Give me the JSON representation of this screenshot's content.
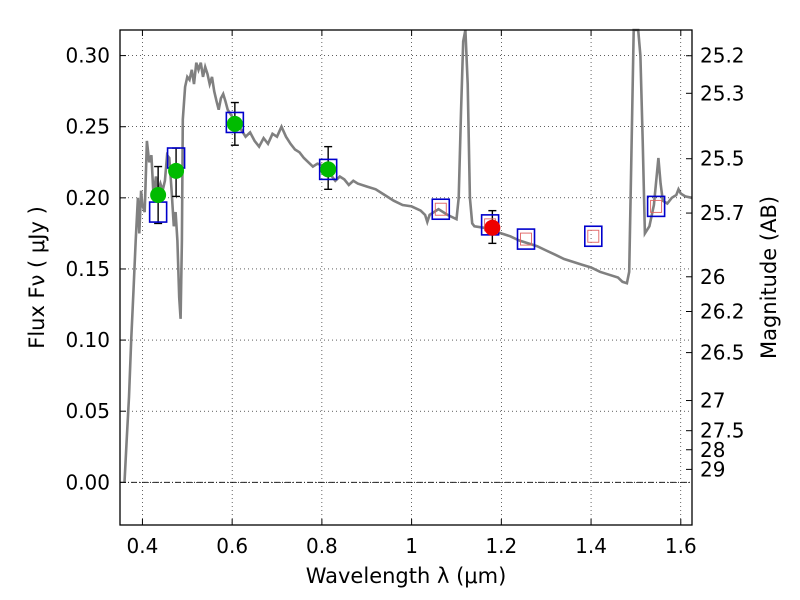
{
  "chart_data": {
    "type": "scatter",
    "xlabel": "Wavelength  λ (μm)",
    "ylabel": "Flux  Fν  ( μJy )",
    "y2label": "Magnitude (AB)",
    "xlim": [
      0.35,
      1.625
    ],
    "ylim": [
      -0.03,
      0.318
    ],
    "x_ticks": [
      0.4,
      0.6,
      0.8,
      1.0,
      1.2,
      1.4,
      1.6
    ],
    "x_tick_labels": [
      "0.4",
      "0.6",
      "0.8",
      "1",
      "1.2",
      "1.4",
      "1.6"
    ],
    "y_ticks": [
      0.0,
      0.05,
      0.1,
      0.15,
      0.2,
      0.25,
      0.3
    ],
    "y_tick_labels": [
      "0.00",
      "0.05",
      "0.10",
      "0.15",
      "0.20",
      "0.25",
      "0.30"
    ],
    "mag_ticks": [
      {
        "flux": 0.2999,
        "label": "25.2"
      },
      {
        "flux": 0.2735,
        "label": "25.3"
      },
      {
        "flux": 0.2275,
        "label": "25.5"
      },
      {
        "flux": 0.1893,
        "label": "25.7"
      },
      {
        "flux": 0.1445,
        "label": "26"
      },
      {
        "flux": 0.1201,
        "label": "26.2"
      },
      {
        "flux": 0.0912,
        "label": "26.5"
      },
      {
        "flux": 0.0575,
        "label": "27"
      },
      {
        "flux": 0.0363,
        "label": "27.5"
      },
      {
        "flux": 0.0229,
        "label": "28"
      },
      {
        "flux": 0.0091,
        "label": "29"
      }
    ],
    "grid": true,
    "zero_line": true,
    "colors": {
      "template": "#808080",
      "model_box": "#0000cc",
      "model_box_inner": "#e06060",
      "detection": "#00bb00",
      "highlight": "#ee0000",
      "errorbar": "#000000"
    },
    "model_points": [
      {
        "x": 0.435,
        "y": 0.19,
        "inner": false
      },
      {
        "x": 0.475,
        "y": 0.228,
        "inner": false
      },
      {
        "x": 0.606,
        "y": 0.253,
        "inner": false
      },
      {
        "x": 0.814,
        "y": 0.22,
        "inner": false
      },
      {
        "x": 1.065,
        "y": 0.192,
        "inner": true
      },
      {
        "x": 1.175,
        "y": 0.181,
        "inner": true
      },
      {
        "x": 1.255,
        "y": 0.171,
        "inner": true
      },
      {
        "x": 1.405,
        "y": 0.173,
        "inner": true
      },
      {
        "x": 1.545,
        "y": 0.194,
        "inner": true
      }
    ],
    "detections": [
      {
        "x": 0.435,
        "y": 0.202,
        "yerr_low": 0.182,
        "yerr_high": 0.222,
        "color": "green"
      },
      {
        "x": 0.475,
        "y": 0.219,
        "yerr_low": 0.201,
        "yerr_high": 0.235,
        "color": "green"
      },
      {
        "x": 0.606,
        "y": 0.252,
        "yerr_low": 0.237,
        "yerr_high": 0.267,
        "color": "green"
      },
      {
        "x": 0.814,
        "y": 0.22,
        "yerr_low": 0.206,
        "yerr_high": 0.236,
        "color": "green"
      },
      {
        "x": 1.18,
        "y": 0.179,
        "yerr_low": 0.168,
        "yerr_high": 0.191,
        "color": "red"
      }
    ],
    "template_spectrum": [
      [
        0.36,
        0.0
      ],
      [
        0.365,
        0.03
      ],
      [
        0.37,
        0.06
      ],
      [
        0.375,
        0.1
      ],
      [
        0.38,
        0.135
      ],
      [
        0.385,
        0.17
      ],
      [
        0.39,
        0.2
      ],
      [
        0.393,
        0.175
      ],
      [
        0.397,
        0.205
      ],
      [
        0.4,
        0.195
      ],
      [
        0.405,
        0.19
      ],
      [
        0.41,
        0.24
      ],
      [
        0.415,
        0.225
      ],
      [
        0.42,
        0.23
      ],
      [
        0.425,
        0.2
      ],
      [
        0.43,
        0.215
      ],
      [
        0.435,
        0.205
      ],
      [
        0.44,
        0.21
      ],
      [
        0.445,
        0.205
      ],
      [
        0.45,
        0.212
      ],
      [
        0.455,
        0.23
      ],
      [
        0.46,
        0.228
      ],
      [
        0.465,
        0.205
      ],
      [
        0.47,
        0.18
      ],
      [
        0.474,
        0.19
      ],
      [
        0.478,
        0.17
      ],
      [
        0.482,
        0.13
      ],
      [
        0.485,
        0.115
      ],
      [
        0.488,
        0.17
      ],
      [
        0.49,
        0.255
      ],
      [
        0.495,
        0.278
      ],
      [
        0.5,
        0.285
      ],
      [
        0.505,
        0.283
      ],
      [
        0.51,
        0.29
      ],
      [
        0.515,
        0.28
      ],
      [
        0.52,
        0.295
      ],
      [
        0.525,
        0.29
      ],
      [
        0.53,
        0.295
      ],
      [
        0.535,
        0.285
      ],
      [
        0.54,
        0.292
      ],
      [
        0.545,
        0.287
      ],
      [
        0.55,
        0.28
      ],
      [
        0.555,
        0.285
      ],
      [
        0.56,
        0.275
      ],
      [
        0.565,
        0.268
      ],
      [
        0.57,
        0.262
      ],
      [
        0.575,
        0.27
      ],
      [
        0.58,
        0.273
      ],
      [
        0.585,
        0.268
      ],
      [
        0.59,
        0.262
      ],
      [
        0.6,
        0.257
      ],
      [
        0.61,
        0.253
      ],
      [
        0.62,
        0.248
      ],
      [
        0.63,
        0.243
      ],
      [
        0.64,
        0.246
      ],
      [
        0.65,
        0.24
      ],
      [
        0.66,
        0.236
      ],
      [
        0.67,
        0.242
      ],
      [
        0.68,
        0.238
      ],
      [
        0.69,
        0.245
      ],
      [
        0.7,
        0.243
      ],
      [
        0.71,
        0.25
      ],
      [
        0.72,
        0.243
      ],
      [
        0.73,
        0.238
      ],
      [
        0.74,
        0.234
      ],
      [
        0.75,
        0.232
      ],
      [
        0.76,
        0.228
      ],
      [
        0.77,
        0.225
      ],
      [
        0.78,
        0.222
      ],
      [
        0.79,
        0.224
      ],
      [
        0.8,
        0.223
      ],
      [
        0.81,
        0.219
      ],
      [
        0.82,
        0.216
      ],
      [
        0.83,
        0.212
      ],
      [
        0.84,
        0.215
      ],
      [
        0.85,
        0.213
      ],
      [
        0.86,
        0.209
      ],
      [
        0.87,
        0.212
      ],
      [
        0.88,
        0.21
      ],
      [
        0.9,
        0.208
      ],
      [
        0.92,
        0.206
      ],
      [
        0.94,
        0.202
      ],
      [
        0.96,
        0.198
      ],
      [
        0.98,
        0.195
      ],
      [
        1.0,
        0.194
      ],
      [
        1.02,
        0.191
      ],
      [
        1.03,
        0.188
      ],
      [
        1.035,
        0.183
      ],
      [
        1.04,
        0.188
      ],
      [
        1.06,
        0.192
      ],
      [
        1.08,
        0.188
      ],
      [
        1.1,
        0.185
      ],
      [
        1.105,
        0.2
      ],
      [
        1.11,
        0.26
      ],
      [
        1.115,
        0.31
      ],
      [
        1.12,
        0.318
      ],
      [
        1.125,
        0.28
      ],
      [
        1.13,
        0.2
      ],
      [
        1.135,
        0.182
      ],
      [
        1.14,
        0.18
      ],
      [
        1.16,
        0.179
      ],
      [
        1.18,
        0.177
      ],
      [
        1.2,
        0.175
      ],
      [
        1.22,
        0.173
      ],
      [
        1.24,
        0.17
      ],
      [
        1.26,
        0.168
      ],
      [
        1.28,
        0.166
      ],
      [
        1.3,
        0.163
      ],
      [
        1.32,
        0.16
      ],
      [
        1.34,
        0.157
      ],
      [
        1.36,
        0.155
      ],
      [
        1.38,
        0.153
      ],
      [
        1.4,
        0.151
      ],
      [
        1.42,
        0.148
      ],
      [
        1.44,
        0.146
      ],
      [
        1.46,
        0.144
      ],
      [
        1.47,
        0.141
      ],
      [
        1.48,
        0.14
      ],
      [
        1.485,
        0.148
      ],
      [
        1.49,
        0.23
      ],
      [
        1.495,
        0.318
      ],
      [
        1.5,
        0.318
      ],
      [
        1.505,
        0.318
      ],
      [
        1.51,
        0.3
      ],
      [
        1.515,
        0.24
      ],
      [
        1.52,
        0.175
      ],
      [
        1.53,
        0.18
      ],
      [
        1.54,
        0.195
      ],
      [
        1.55,
        0.228
      ],
      [
        1.555,
        0.21
      ],
      [
        1.56,
        0.198
      ],
      [
        1.57,
        0.196
      ],
      [
        1.58,
        0.2
      ],
      [
        1.59,
        0.202
      ],
      [
        1.595,
        0.206
      ],
      [
        1.6,
        0.203
      ],
      [
        1.61,
        0.201
      ],
      [
        1.625,
        0.2
      ]
    ]
  }
}
